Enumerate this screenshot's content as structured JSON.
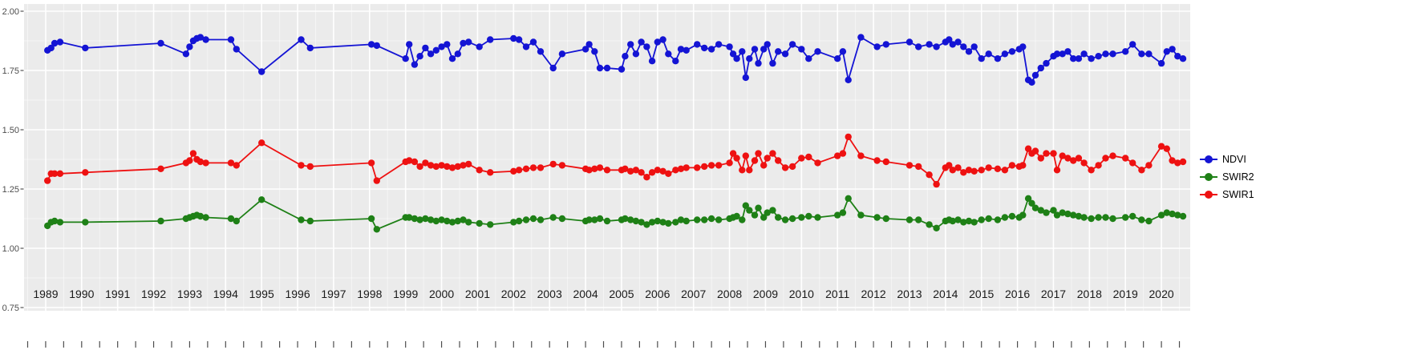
{
  "figure": {
    "background": "#FFFFFF",
    "panel_background": "#EBEBEB",
    "grid_major_color": "#FFFFFF",
    "grid_minor_color": "rgba(255,255,255,0.55)",
    "tick_color": "#4D4D4D",
    "x_label_color": "#1A1A1A",
    "y_label_color": "#4D4D4D"
  },
  "chart_data": {
    "type": "line",
    "title": "",
    "xlabel": "",
    "ylabel": "",
    "grid": true,
    "legend_position": "right",
    "x_range": [
      1988.4,
      2020.8
    ],
    "y_range": [
      0.73,
      2.03
    ],
    "y_ticks": [
      "2.00",
      "1.75",
      "1.50",
      "1.25",
      "1.00",
      "0.75"
    ],
    "y_tick_values": [
      2.0,
      1.75,
      1.5,
      1.25,
      1.0,
      0.75
    ],
    "x_ticks": [
      1989,
      1990,
      1991,
      1992,
      1993,
      1994,
      1995,
      1996,
      1997,
      1998,
      1999,
      2000,
      2001,
      2002,
      2003,
      2004,
      2005,
      2006,
      2007,
      2008,
      2009,
      2010,
      2011,
      2012,
      2013,
      2014,
      2015,
      2016,
      2017,
      2018,
      2019,
      2020
    ],
    "x": [
      1989.05,
      1989.15,
      1989.25,
      1989.4,
      1990.1,
      1992.2,
      1992.9,
      1993.0,
      1993.1,
      1993.2,
      1993.3,
      1993.45,
      1994.15,
      1994.3,
      1995.0,
      1996.1,
      1996.35,
      1998.05,
      1998.2,
      1999.0,
      1999.1,
      1999.25,
      1999.4,
      1999.55,
      1999.7,
      1999.85,
      2000.0,
      2000.15,
      2000.3,
      2000.45,
      2000.6,
      2000.75,
      2001.05,
      2001.35,
      2002.0,
      2002.15,
      2002.35,
      2002.55,
      2002.75,
      2003.1,
      2003.35,
      2004.0,
      2004.1,
      2004.25,
      2004.4,
      2004.6,
      2005.0,
      2005.1,
      2005.25,
      2005.4,
      2005.55,
      2005.7,
      2005.85,
      2006.0,
      2006.15,
      2006.3,
      2006.5,
      2006.65,
      2006.8,
      2007.1,
      2007.3,
      2007.5,
      2007.7,
      2008.0,
      2008.1,
      2008.2,
      2008.35,
      2008.45,
      2008.55,
      2008.7,
      2008.8,
      2008.95,
      2009.05,
      2009.2,
      2009.35,
      2009.55,
      2009.75,
      2010.0,
      2010.2,
      2010.45,
      2011.0,
      2011.15,
      2011.3,
      2011.65,
      2012.1,
      2012.35,
      2013.0,
      2013.25,
      2013.55,
      2013.75,
      2014.0,
      2014.1,
      2014.2,
      2014.35,
      2014.5,
      2014.65,
      2014.8,
      2015.0,
      2015.2,
      2015.45,
      2015.65,
      2015.85,
      2016.05,
      2016.15,
      2016.3,
      2016.4,
      2016.5,
      2016.65,
      2016.8,
      2017.0,
      2017.1,
      2017.25,
      2017.4,
      2017.55,
      2017.7,
      2017.85,
      2018.05,
      2018.25,
      2018.45,
      2018.65,
      2019.0,
      2019.2,
      2019.45,
      2019.65,
      2020.0,
      2020.15,
      2020.3,
      2020.45,
      2020.6
    ],
    "series": [
      {
        "name": "NDVI",
        "color": "#1414D4",
        "values": [
          1.835,
          1.845,
          1.865,
          1.87,
          1.845,
          1.865,
          1.82,
          1.85,
          1.875,
          1.885,
          1.89,
          1.88,
          1.88,
          1.84,
          1.745,
          1.88,
          1.845,
          1.86,
          1.855,
          1.8,
          1.86,
          1.775,
          1.81,
          1.845,
          1.82,
          1.835,
          1.85,
          1.86,
          1.8,
          1.82,
          1.865,
          1.87,
          1.85,
          1.88,
          1.885,
          1.88,
          1.85,
          1.87,
          1.83,
          1.76,
          1.82,
          1.84,
          1.86,
          1.83,
          1.76,
          1.76,
          1.755,
          1.81,
          1.86,
          1.82,
          1.87,
          1.85,
          1.79,
          1.87,
          1.88,
          1.82,
          1.79,
          1.84,
          1.835,
          1.86,
          1.845,
          1.84,
          1.86,
          1.85,
          1.82,
          1.8,
          1.83,
          1.72,
          1.8,
          1.84,
          1.78,
          1.84,
          1.86,
          1.78,
          1.83,
          1.82,
          1.86,
          1.84,
          1.8,
          1.83,
          1.8,
          1.83,
          1.71,
          1.89,
          1.85,
          1.86,
          1.87,
          1.85,
          1.86,
          1.85,
          1.87,
          1.88,
          1.86,
          1.87,
          1.85,
          1.83,
          1.85,
          1.8,
          1.82,
          1.8,
          1.82,
          1.83,
          1.84,
          1.85,
          1.71,
          1.7,
          1.73,
          1.76,
          1.78,
          1.81,
          1.82,
          1.82,
          1.83,
          1.8,
          1.8,
          1.82,
          1.8,
          1.81,
          1.82,
          1.82,
          1.83,
          1.86,
          1.82,
          1.82,
          1.78,
          1.83,
          1.84,
          1.81,
          1.8
        ]
      },
      {
        "name": "SWIR2",
        "color": "#1E8016",
        "values": [
          1.095,
          1.11,
          1.115,
          1.11,
          1.11,
          1.115,
          1.125,
          1.13,
          1.135,
          1.14,
          1.135,
          1.13,
          1.125,
          1.115,
          1.205,
          1.12,
          1.115,
          1.125,
          1.08,
          1.13,
          1.13,
          1.125,
          1.12,
          1.125,
          1.12,
          1.115,
          1.12,
          1.115,
          1.11,
          1.115,
          1.12,
          1.11,
          1.105,
          1.1,
          1.11,
          1.115,
          1.12,
          1.125,
          1.12,
          1.13,
          1.125,
          1.115,
          1.12,
          1.12,
          1.125,
          1.115,
          1.12,
          1.125,
          1.12,
          1.115,
          1.11,
          1.1,
          1.11,
          1.115,
          1.11,
          1.105,
          1.11,
          1.12,
          1.115,
          1.12,
          1.12,
          1.125,
          1.12,
          1.125,
          1.13,
          1.135,
          1.12,
          1.18,
          1.16,
          1.14,
          1.17,
          1.13,
          1.15,
          1.16,
          1.13,
          1.12,
          1.125,
          1.13,
          1.135,
          1.13,
          1.14,
          1.15,
          1.21,
          1.14,
          1.13,
          1.125,
          1.12,
          1.12,
          1.1,
          1.085,
          1.115,
          1.12,
          1.115,
          1.12,
          1.11,
          1.115,
          1.11,
          1.12,
          1.125,
          1.12,
          1.13,
          1.135,
          1.13,
          1.14,
          1.21,
          1.19,
          1.17,
          1.16,
          1.15,
          1.16,
          1.14,
          1.15,
          1.145,
          1.14,
          1.135,
          1.13,
          1.125,
          1.13,
          1.13,
          1.125,
          1.13,
          1.135,
          1.12,
          1.115,
          1.14,
          1.15,
          1.145,
          1.14,
          1.135
        ]
      },
      {
        "name": "SWIR1",
        "color": "#EE1111",
        "values": [
          1.285,
          1.315,
          1.315,
          1.315,
          1.32,
          1.335,
          1.36,
          1.37,
          1.4,
          1.375,
          1.365,
          1.36,
          1.36,
          1.35,
          1.445,
          1.35,
          1.345,
          1.36,
          1.285,
          1.365,
          1.37,
          1.365,
          1.345,
          1.36,
          1.35,
          1.345,
          1.35,
          1.345,
          1.34,
          1.345,
          1.35,
          1.355,
          1.33,
          1.32,
          1.325,
          1.33,
          1.335,
          1.34,
          1.34,
          1.355,
          1.35,
          1.335,
          1.33,
          1.335,
          1.34,
          1.33,
          1.33,
          1.335,
          1.325,
          1.33,
          1.32,
          1.3,
          1.32,
          1.33,
          1.325,
          1.315,
          1.33,
          1.335,
          1.34,
          1.34,
          1.345,
          1.35,
          1.35,
          1.36,
          1.4,
          1.38,
          1.33,
          1.39,
          1.33,
          1.37,
          1.4,
          1.35,
          1.38,
          1.4,
          1.37,
          1.34,
          1.345,
          1.38,
          1.385,
          1.36,
          1.39,
          1.4,
          1.47,
          1.39,
          1.37,
          1.365,
          1.35,
          1.345,
          1.31,
          1.27,
          1.34,
          1.35,
          1.33,
          1.34,
          1.32,
          1.33,
          1.325,
          1.33,
          1.34,
          1.335,
          1.33,
          1.35,
          1.345,
          1.35,
          1.42,
          1.4,
          1.41,
          1.38,
          1.4,
          1.4,
          1.33,
          1.39,
          1.38,
          1.37,
          1.38,
          1.36,
          1.33,
          1.35,
          1.38,
          1.39,
          1.38,
          1.36,
          1.33,
          1.35,
          1.43,
          1.42,
          1.37,
          1.36,
          1.365
        ]
      }
    ]
  }
}
